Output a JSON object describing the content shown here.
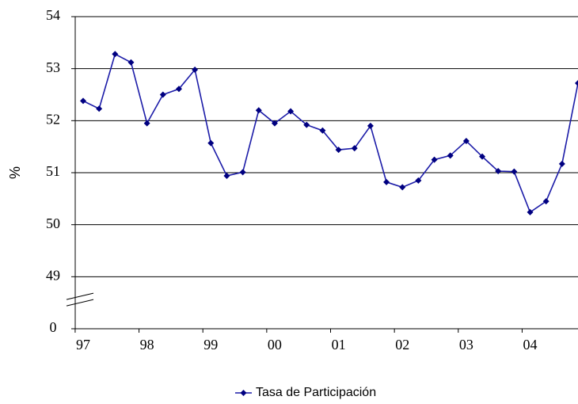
{
  "chart_data": {
    "type": "line",
    "y_label": "%",
    "categories": [
      "97",
      null,
      null,
      null,
      "98",
      null,
      null,
      null,
      "99",
      null,
      null,
      null,
      "00",
      null,
      null,
      null,
      "01",
      null,
      null,
      null,
      "02",
      null,
      null,
      null,
      "03",
      null,
      null,
      null,
      "04",
      null,
      null,
      null
    ],
    "series": [
      {
        "name": "Tasa de Participación",
        "color": "#1c1ca8",
        "values": [
          52.38,
          52.23,
          53.28,
          53.12,
          51.95,
          52.5,
          52.61,
          52.98,
          51.57,
          50.94,
          51.01,
          52.2,
          51.95,
          52.18,
          51.92,
          51.81,
          51.44,
          51.47,
          51.9,
          50.82,
          50.72,
          50.85,
          51.25,
          51.33,
          51.61,
          51.31,
          51.03,
          51.02,
          50.24,
          50.45,
          51.17,
          52.72
        ]
      }
    ],
    "ylim": [
      0,
      54
    ],
    "yticks": [
      0,
      49,
      50,
      51,
      52,
      53,
      54
    ],
    "axis_break": true,
    "grid": true,
    "legend": "bottom"
  }
}
